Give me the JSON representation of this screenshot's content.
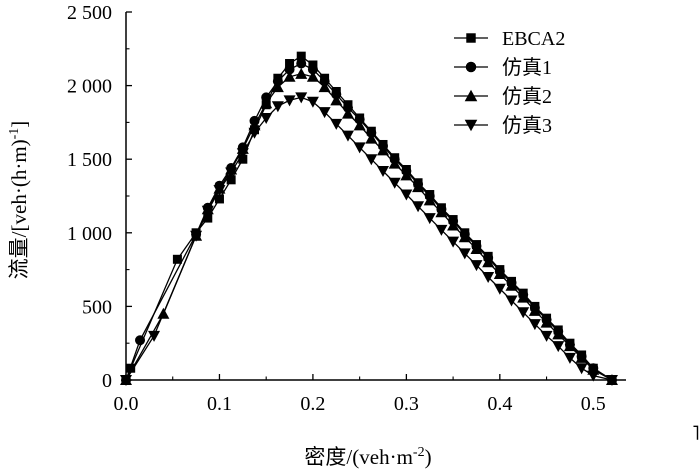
{
  "chart_data": {
    "type": "line",
    "xlabel": {
      "main": "密度/(veh·m",
      "sup": "-2",
      "end": ")"
    },
    "ylabel": {
      "main": "流量/[veh·(h·m)",
      "sup": "-1",
      "end": "]"
    },
    "xlim": [
      0,
      0.535
    ],
    "ylim": [
      0,
      2500
    ],
    "xticks": [
      0.0,
      0.1,
      0.2,
      0.3,
      0.4,
      0.5
    ],
    "xtick_labels": [
      "0.0",
      "0.1",
      "0.2",
      "0.3",
      "0.4",
      "0.5"
    ],
    "yticks": [
      0,
      500,
      1000,
      1500,
      2000,
      2500
    ],
    "ytick_labels": [
      "0",
      "500",
      "1 000",
      "1 500",
      "2 000",
      "2 500"
    ],
    "grid": false,
    "legend_position": "top-right",
    "series": [
      {
        "name": "EBCA2",
        "marker": "square",
        "x": [
          0,
          0.005,
          0.055,
          0.075,
          0.0875,
          0.1,
          0.1125,
          0.125,
          0.1375,
          0.15,
          0.1625,
          0.175,
          0.1875,
          0.2,
          0.2125,
          0.225,
          0.2375,
          0.25,
          0.2625,
          0.275,
          0.2875,
          0.3,
          0.3125,
          0.325,
          0.3375,
          0.35,
          0.3625,
          0.375,
          0.3875,
          0.4,
          0.4125,
          0.425,
          0.4375,
          0.45,
          0.4625,
          0.475,
          0.4875,
          0.5,
          0.52
        ],
        "y": [
          0,
          80,
          820,
          1000,
          1100,
          1230,
          1360,
          1500,
          1700,
          1870,
          2050,
          2150,
          2200,
          2140,
          2050,
          1960,
          1870,
          1780,
          1690,
          1600,
          1510,
          1430,
          1340,
          1260,
          1170,
          1090,
          1000,
          920,
          840,
          750,
          670,
          590,
          500,
          420,
          340,
          250,
          170,
          80,
          0
        ]
      },
      {
        "name": "仿真1",
        "marker": "circle",
        "x": [
          0,
          0.015,
          0.075,
          0.0875,
          0.1,
          0.1125,
          0.125,
          0.1375,
          0.15,
          0.1625,
          0.175,
          0.1875,
          0.2,
          0.2125,
          0.225,
          0.2375,
          0.25,
          0.2625,
          0.275,
          0.2875,
          0.3,
          0.3125,
          0.325,
          0.3375,
          0.35,
          0.3625,
          0.375,
          0.3875,
          0.4,
          0.4125,
          0.425,
          0.4375,
          0.45,
          0.4625,
          0.475,
          0.4875,
          0.5,
          0.52
        ],
        "y": [
          0,
          270,
          990,
          1170,
          1320,
          1440,
          1580,
          1760,
          1920,
          2030,
          2110,
          2150,
          2110,
          2030,
          1940,
          1850,
          1770,
          1680,
          1590,
          1500,
          1420,
          1330,
          1250,
          1160,
          1080,
          990,
          910,
          830,
          740,
          660,
          580,
          490,
          410,
          330,
          240,
          160,
          80,
          0
        ]
      },
      {
        "name": "仿真2",
        "marker": "triangle-up",
        "x": [
          0,
          0.04,
          0.075,
          0.0875,
          0.1,
          0.1125,
          0.125,
          0.1375,
          0.15,
          0.1625,
          0.175,
          0.1875,
          0.2,
          0.2125,
          0.225,
          0.2375,
          0.25,
          0.2625,
          0.275,
          0.2875,
          0.3,
          0.3125,
          0.325,
          0.3375,
          0.35,
          0.3625,
          0.375,
          0.3875,
          0.4,
          0.4125,
          0.425,
          0.4375,
          0.45,
          0.4625,
          0.475,
          0.4875,
          0.5,
          0.52
        ],
        "y": [
          0,
          450,
          980,
          1160,
          1300,
          1430,
          1570,
          1730,
          1880,
          1990,
          2060,
          2080,
          2060,
          1990,
          1900,
          1810,
          1730,
          1640,
          1560,
          1470,
          1390,
          1310,
          1220,
          1140,
          1050,
          970,
          890,
          800,
          720,
          640,
          560,
          470,
          390,
          310,
          230,
          150,
          70,
          0
        ]
      },
      {
        "name": "仿真3",
        "marker": "triangle-down",
        "x": [
          0,
          0.03,
          0.075,
          0.0875,
          0.1,
          0.1125,
          0.125,
          0.1375,
          0.15,
          0.1625,
          0.175,
          0.1875,
          0.2,
          0.2125,
          0.225,
          0.2375,
          0.25,
          0.2625,
          0.275,
          0.2875,
          0.3,
          0.3125,
          0.325,
          0.3375,
          0.35,
          0.3625,
          0.375,
          0.3875,
          0.4,
          0.4125,
          0.425,
          0.4375,
          0.45,
          0.4625,
          0.475,
          0.4875,
          0.5,
          0.52
        ],
        "y": [
          0,
          300,
          980,
          1150,
          1290,
          1410,
          1540,
          1680,
          1780,
          1860,
          1900,
          1920,
          1890,
          1820,
          1740,
          1660,
          1580,
          1500,
          1420,
          1340,
          1260,
          1180,
          1100,
          1020,
          940,
          860,
          780,
          700,
          620,
          540,
          460,
          380,
          300,
          230,
          150,
          80,
          30,
          0
        ]
      }
    ]
  }
}
